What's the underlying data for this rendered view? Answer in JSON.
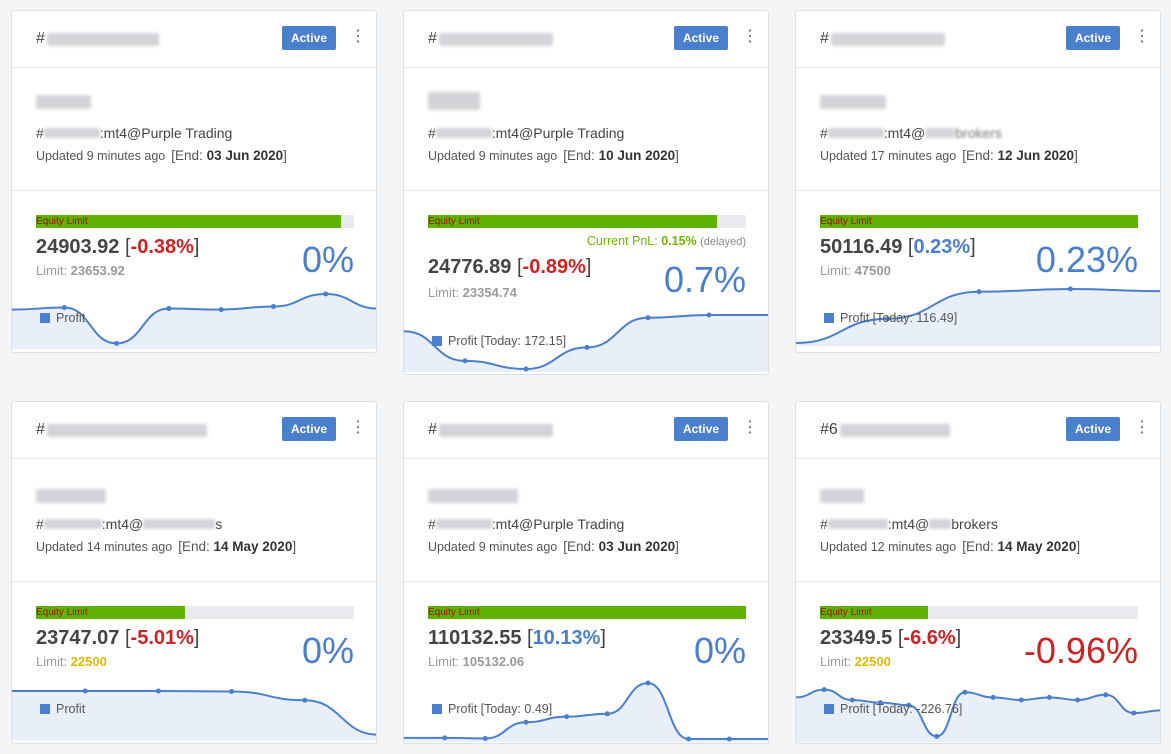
{
  "cards": [
    {
      "id_prefix": "#",
      "status": "Active",
      "login_prefix": "#",
      "login_suffix": ":mt4@Purple Trading",
      "updated": "Updated 9 minutes ago",
      "end_label": "End: ",
      "end_date": "03 Jun 2020",
      "equity_label": "Equity Limit",
      "equity_fill": 0.96,
      "equity": "24903.92",
      "equity_pct": "-0.38%",
      "limit_label": "Limit: ",
      "limit": "23653.92",
      "big_pct": "0%",
      "legend": "Profit",
      "spark": [
        0.3,
        0.26,
        0.95,
        0.28,
        0.3,
        0.24,
        0.0,
        0.28
      ]
    },
    {
      "id_prefix": "#",
      "status": "Active",
      "login_prefix": "#",
      "login_suffix": ":mt4@Purple Trading",
      "updated": "Updated 9 minutes ago",
      "end_label": "End: ",
      "end_date": "10 Jun 2020",
      "equity_label": "Equity Limit",
      "equity_fill": 0.91,
      "pnl_label": "Current PnL: ",
      "pnl_value": "0.15%",
      "pnl_note": "(delayed)",
      "equity": "24776.89",
      "equity_pct": "-0.89%",
      "limit_label": "Limit: ",
      "limit": "23354.74",
      "big_pct": "0.7%",
      "legend": "Profit [Today: 172.15]",
      "spark": [
        0.3,
        0.85,
        1.0,
        0.6,
        0.05,
        0.0,
        0.0
      ]
    },
    {
      "id_prefix": "#",
      "status": "Active",
      "login_prefix": "#",
      "login_suffix": ":mt4@",
      "login_tail": "brokers",
      "updated": "Updated 17 minutes ago",
      "end_label": "End: ",
      "end_date": "12 Jun 2020",
      "equity_label": "Equity Limit",
      "equity_fill": 1.0,
      "equity": "50116.49",
      "equity_pct": "0.23%",
      "limit_label": "Limit: ",
      "limit": "47500",
      "big_pct": "0.23%",
      "legend": "Profit [Today: 116.49]",
      "spark": [
        1.0,
        0.55,
        0.05,
        0.0,
        0.04
      ]
    },
    {
      "id_prefix": "#",
      "status": "Active",
      "login_prefix": "#",
      "login_suffix": ":mt4@",
      "login_tail": "s",
      "updated": "Updated 14 minutes ago",
      "end_label": "End: ",
      "end_date": "14 May 2020",
      "equity_label": "Equity Limit",
      "equity_fill": 0.47,
      "equity": "23747.07",
      "equity_pct": "-5.01%",
      "limit_label": "Limit: ",
      "limit": "22500",
      "big_pct": "0%",
      "legend": "Profit",
      "spark": [
        0.0,
        0.0,
        0.0,
        0.01,
        0.2,
        0.95
      ]
    },
    {
      "id_prefix": "#",
      "status": "Active",
      "login_prefix": "#",
      "login_suffix": ":mt4@Purple Trading",
      "updated": "Updated 9 minutes ago",
      "end_label": "End: ",
      "end_date": "03 Jun 2020",
      "equity_label": "Equity Limit",
      "equity_fill": 1.0,
      "equity": "110132.55",
      "equity_pct": "10.13%",
      "limit_label": "Limit: ",
      "limit": "105132.06",
      "big_pct": "0%",
      "legend": "Profit [Today: 0.49]",
      "spark": [
        0.98,
        0.98,
        0.99,
        0.7,
        0.6,
        0.55,
        0.0,
        1.0,
        1.0,
        1.0
      ]
    },
    {
      "id_prefix": "#6",
      "status": "Active",
      "login_prefix": "#",
      "login_suffix": ":mt4@",
      "login_tail": "brokers",
      "updated": "Updated 12 minutes ago",
      "end_label": "End: ",
      "end_date": "14 May 2020",
      "equity_label": "Equity Limit",
      "equity_fill": 0.34,
      "equity": "23349.5",
      "equity_pct": "-6.6%",
      "limit_label": "Limit: ",
      "limit": "22500",
      "big_pct": "-0.96%",
      "legend": "Profit [Today: -226.76]",
      "spark": [
        0.2,
        0.05,
        0.25,
        0.3,
        0.35,
        0.95,
        0.1,
        0.2,
        0.25,
        0.2,
        0.25,
        0.15,
        0.5,
        0.45
      ]
    }
  ]
}
